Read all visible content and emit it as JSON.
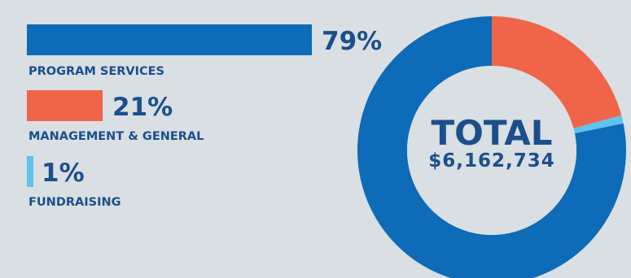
{
  "chart_data": {
    "type": "bar",
    "categories": [
      "PROGRAM SERVICES",
      "MANAGEMENT & GENERAL",
      "FUNDRAISING"
    ],
    "values": [
      79,
      21,
      1
    ],
    "value_labels": [
      "79%",
      "21%",
      "1%"
    ],
    "colors": [
      "#0d6bb8",
      "#f0654a",
      "#5fc3ec"
    ],
    "unit": "%",
    "donut": {
      "type": "pie",
      "center_label": "TOTAL",
      "center_value": "$6,162,734"
    }
  }
}
